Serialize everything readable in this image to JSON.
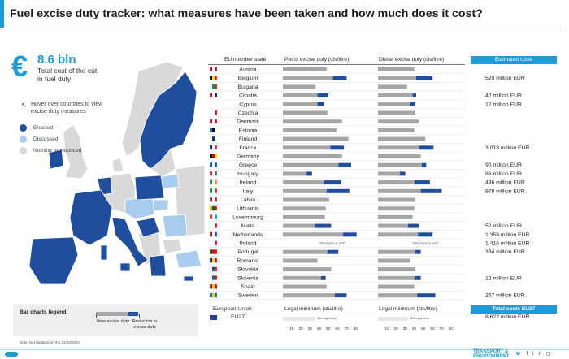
{
  "title": "Fuel excise duty tracker: what measures have been taken and how much does it cost?",
  "headline": {
    "value": "8.6 bln",
    "caption": "Total cost of the cut in fuel duty",
    "euro_symbol": "€"
  },
  "map_hint": "Hover over countries to view excise duty measures",
  "map_legend": [
    {
      "label": "Enacted",
      "color": "#1f4e9e"
    },
    {
      "label": "Discussed",
      "color": "#a9cdee"
    },
    {
      "label": "Nothing pronounced",
      "color": "#d9d9d9"
    }
  ],
  "bar_legend": {
    "title": "Bar charts legend:",
    "new_label": "New excise duty",
    "reduction_label": "Reduction in excise duty"
  },
  "updated": "Note: last updated on the 21/03/2022",
  "brand": "TRANSPORT & ENVIRONMENT",
  "social_icons": [
    "twitter-icon",
    "facebook-icon",
    "linkedin-icon",
    "instagram-icon"
  ],
  "headers": {
    "state": "EU member state",
    "petrol": "Petrol excise duty (cts/litre)",
    "diesel": "Diesel excise duty (cts/litre)",
    "costs": "Estimated costs"
  },
  "chart_data": {
    "type": "bar",
    "orientation": "horizontal",
    "stacked": true,
    "unit": "cts/litre",
    "series_colors": {
      "new_excise_duty": "#a6a6a6",
      "reduction": "#1f4e9e"
    },
    "categories": [
      "Austria",
      "Belgium",
      "Bulgaria",
      "Croatia",
      "Cyprus",
      "Czechia",
      "Denmark",
      "Estonia",
      "Finland",
      "France",
      "Germany",
      "Greece",
      "Hungary",
      "Ireland",
      "Italy",
      "Latvia",
      "Lithuania",
      "Luxembourg",
      "Malta",
      "Netherlands",
      "Poland",
      "Portugal",
      "Romania",
      "Slovakia",
      "Slovenia",
      "Spain",
      "Sweden"
    ],
    "petrol_new": [
      48,
      55,
      36,
      38,
      38,
      49,
      65,
      59,
      72,
      52,
      65,
      61,
      26,
      45,
      48,
      51,
      47,
      46,
      35,
      66,
      0,
      49,
      38,
      53,
      42,
      48,
      57
    ],
    "petrol_reduction": [
      0,
      15,
      0,
      12,
      7,
      0,
      0,
      0,
      0,
      15,
      0,
      14,
      6,
      19,
      25,
      0,
      0,
      0,
      18,
      15,
      0,
      12,
      0,
      0,
      5,
      0,
      13
    ],
    "diesel_new": [
      40,
      42,
      32,
      38,
      35,
      41,
      45,
      40,
      52,
      45,
      47,
      48,
      24,
      40,
      47,
      41,
      40,
      38,
      33,
      44,
      0,
      41,
      35,
      41,
      40,
      40,
      43
    ],
    "diesel_reduction": [
      0,
      18,
      0,
      4,
      6,
      0,
      0,
      0,
      0,
      16,
      0,
      5,
      6,
      17,
      23,
      0,
      0,
      0,
      12,
      16,
      0,
      6,
      0,
      0,
      7,
      0,
      20
    ],
    "notes": {
      "Poland": "*decrease in VAT"
    },
    "estimated_costs": [
      "",
      "520 million EUR",
      "",
      "42 million EUR",
      "12 million EUR",
      "",
      "",
      "",
      "",
      "3,018 million EUR",
      "",
      "90 million EUR",
      "86 million EUR",
      "436 million EUR",
      "978 million EUR",
      "",
      "",
      "",
      "52 million EUR",
      "1,358 million EUR",
      "1,416 million EUR",
      "334 million EUR",
      "",
      "",
      "12 million EUR",
      "",
      "267 million EUR"
    ],
    "xlim": [
      0,
      80
    ],
    "x_ticks": [
      10,
      20,
      30,
      40,
      50,
      60,
      70,
      80
    ]
  },
  "eu_row": {
    "section": "European Union",
    "min_petrol_label": "Legal minimum (cts/litre)",
    "min_diesel_label": "Legal minimum (cts/litre)",
    "total_label": "Total costs EU27",
    "name": "EU27",
    "min_petrol": 36,
    "min_diesel": 33,
    "min_note": "Min legal level",
    "total": "8,622 million EUR"
  },
  "map_country_status": {
    "enacted": [
      "Portugal",
      "Spain",
      "France",
      "Belgium",
      "Netherlands",
      "Ireland",
      "Italy",
      "Sweden",
      "Finland",
      "Croatia",
      "Slovenia",
      "Greece",
      "Cyprus",
      "Malta",
      "Hungary",
      "Poland"
    ],
    "discussed": [
      "Austria",
      "Czechia",
      "Slovakia",
      "Romania",
      "Lithuania"
    ],
    "nothing_pronounced": [
      "Germany",
      "Denmark",
      "Estonia",
      "Latvia",
      "Bulgaria",
      "Luxembourg",
      "Norway",
      "United Kingdom"
    ]
  }
}
